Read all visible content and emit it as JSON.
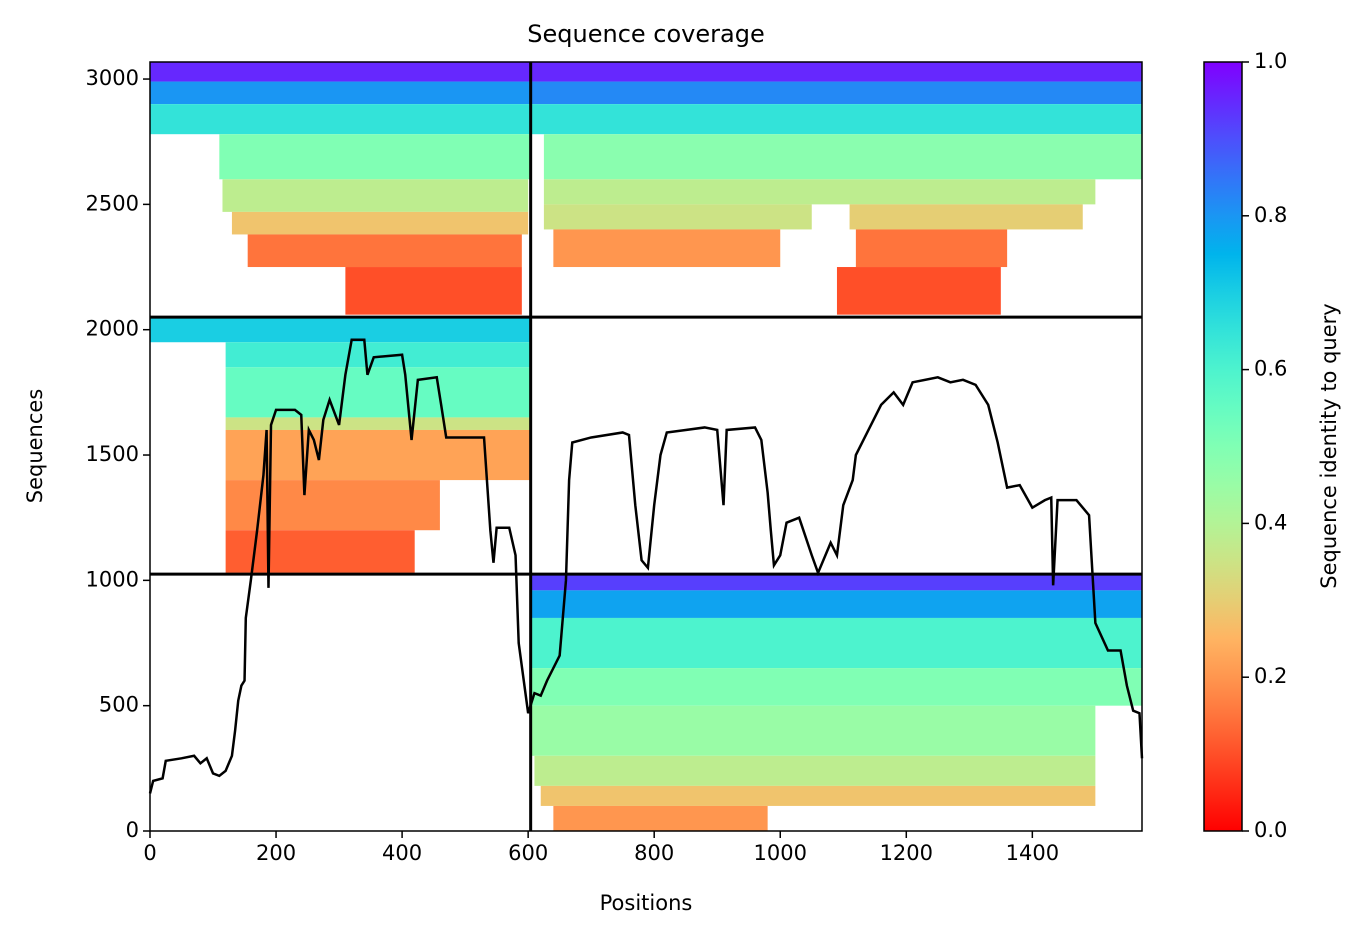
{
  "chart_data": {
    "type": "coverage",
    "title": "Sequence coverage",
    "xlabel": "Positions",
    "ylabel": "Sequences",
    "xlim": [
      0,
      1574
    ],
    "ylim": [
      0,
      3068
    ],
    "xticks": [
      0,
      200,
      400,
      600,
      800,
      1000,
      1200,
      1400
    ],
    "yticks": [
      0,
      500,
      1000,
      1500,
      2000,
      2500,
      3000
    ],
    "colorbar": {
      "label": "Sequence identity to query",
      "lim": [
        0,
        1
      ],
      "ticks": [
        {
          "value": 0,
          "label": "0.0"
        },
        {
          "value": 0.2,
          "label": "0.2"
        },
        {
          "value": 0.4,
          "label": "0.4"
        },
        {
          "value": 0.6,
          "label": "0.6"
        },
        {
          "value": 0.8,
          "label": "0.8"
        },
        {
          "value": 1,
          "label": "1.0"
        }
      ]
    },
    "dividers": {
      "x": [
        604
      ],
      "y": [
        1025,
        2050
      ],
      "color": "#000000"
    },
    "coverage": [
      {
        "x": [
          0,
          604
        ],
        "y": [
          2990,
          3068
        ],
        "identity": 0.95
      },
      {
        "x": [
          0,
          604
        ],
        "y": [
          2900,
          2990
        ],
        "identity": 0.8
      },
      {
        "x": [
          0,
          604
        ],
        "y": [
          2780,
          2900
        ],
        "identity": 0.65
      },
      {
        "x": [
          110,
          604
        ],
        "y": [
          2600,
          2780
        ],
        "identity": 0.5
      },
      {
        "x": [
          115,
          600
        ],
        "y": [
          2470,
          2600
        ],
        "identity": 0.38
      },
      {
        "x": [
          130,
          600
        ],
        "y": [
          2380,
          2470
        ],
        "identity": 0.28
      },
      {
        "x": [
          155,
          590
        ],
        "y": [
          2250,
          2380
        ],
        "identity": 0.15
      },
      {
        "x": [
          310,
          590
        ],
        "y": [
          2060,
          2250
        ],
        "identity": 0.1
      },
      {
        "x": [
          604,
          1574
        ],
        "y": [
          2990,
          3068
        ],
        "identity": 0.95
      },
      {
        "x": [
          604,
          1574
        ],
        "y": [
          2900,
          2990
        ],
        "identity": 0.82
      },
      {
        "x": [
          604,
          1574
        ],
        "y": [
          2780,
          2900
        ],
        "identity": 0.65
      },
      {
        "x": [
          625,
          1574
        ],
        "y": [
          2600,
          2780
        ],
        "identity": 0.48
      },
      {
        "x": [
          625,
          1500
        ],
        "y": [
          2500,
          2600
        ],
        "identity": 0.38
      },
      {
        "x": [
          625,
          1050
        ],
        "y": [
          2400,
          2500
        ],
        "identity": 0.35
      },
      {
        "x": [
          1110,
          1480
        ],
        "y": [
          2400,
          2500
        ],
        "identity": 0.3
      },
      {
        "x": [
          640,
          1000
        ],
        "y": [
          2250,
          2400
        ],
        "identity": 0.2
      },
      {
        "x": [
          1120,
          1360
        ],
        "y": [
          2250,
          2400
        ],
        "identity": 0.15
      },
      {
        "x": [
          1090,
          1350
        ],
        "y": [
          2060,
          2250
        ],
        "identity": 0.1
      },
      {
        "x": [
          0,
          604
        ],
        "y": [
          1950,
          2050
        ],
        "identity": 0.7
      },
      {
        "x": [
          120,
          604
        ],
        "y": [
          1850,
          1950
        ],
        "identity": 0.62
      },
      {
        "x": [
          120,
          604
        ],
        "y": [
          1650,
          1850
        ],
        "identity": 0.55
      },
      {
        "x": [
          120,
          604
        ],
        "y": [
          1600,
          1650
        ],
        "identity": 0.35
      },
      {
        "x": [
          120,
          604
        ],
        "y": [
          1400,
          1600
        ],
        "identity": 0.22
      },
      {
        "x": [
          120,
          460
        ],
        "y": [
          1200,
          1400
        ],
        "identity": 0.18
      },
      {
        "x": [
          120,
          420
        ],
        "y": [
          1030,
          1200
        ],
        "identity": 0.12
      },
      {
        "x": [
          604,
          1574
        ],
        "y": [
          960,
          1025
        ],
        "identity": 0.92
      },
      {
        "x": [
          604,
          1574
        ],
        "y": [
          850,
          960
        ],
        "identity": 0.78
      },
      {
        "x": [
          604,
          1574
        ],
        "y": [
          650,
          850
        ],
        "identity": 0.6
      },
      {
        "x": [
          604,
          1574
        ],
        "y": [
          500,
          650
        ],
        "identity": 0.5
      },
      {
        "x": [
          604,
          1500
        ],
        "y": [
          300,
          500
        ],
        "identity": 0.45
      },
      {
        "x": [
          610,
          1500
        ],
        "y": [
          180,
          300
        ],
        "identity": 0.38
      },
      {
        "x": [
          620,
          1500
        ],
        "y": [
          100,
          180
        ],
        "identity": 0.28
      },
      {
        "x": [
          640,
          980
        ],
        "y": [
          0,
          100
        ],
        "identity": 0.2
      }
    ],
    "coverage_line": {
      "color": "#000000",
      "x": [
        0,
        5,
        20,
        25,
        50,
        70,
        80,
        90,
        100,
        110,
        120,
        130,
        135,
        140,
        145,
        150,
        152,
        160,
        170,
        180,
        185,
        188,
        192,
        200,
        230,
        240,
        245,
        252,
        260,
        268,
        275,
        285,
        300,
        310,
        320,
        340,
        345,
        355,
        400,
        405,
        415,
        425,
        455,
        462,
        470,
        530,
        540,
        545,
        550,
        570,
        580,
        585,
        600,
        610,
        620,
        630,
        650,
        660,
        665,
        670,
        700,
        750,
        760,
        770,
        780,
        790,
        800,
        810,
        820,
        850,
        880,
        900,
        910,
        915,
        960,
        970,
        980,
        985,
        990,
        1000,
        1010,
        1030,
        1050,
        1060,
        1080,
        1090,
        1100,
        1115,
        1120,
        1140,
        1160,
        1180,
        1195,
        1210,
        1250,
        1270,
        1290,
        1310,
        1330,
        1345,
        1360,
        1380,
        1400,
        1420,
        1430,
        1433,
        1440,
        1470,
        1490,
        1500,
        1520,
        1540,
        1550,
        1560,
        1570,
        1574
      ],
      "y": [
        150,
        200,
        210,
        280,
        290,
        300,
        270,
        290,
        230,
        220,
        240,
        300,
        400,
        520,
        580,
        600,
        850,
        1000,
        1200,
        1420,
        1600,
        970,
        1620,
        1680,
        1680,
        1660,
        1340,
        1600,
        1560,
        1480,
        1640,
        1720,
        1620,
        1820,
        1960,
        1960,
        1820,
        1890,
        1900,
        1820,
        1560,
        1800,
        1810,
        1700,
        1570,
        1570,
        1200,
        1070,
        1210,
        1210,
        1100,
        750,
        470,
        550,
        540,
        600,
        700,
        1000,
        1400,
        1550,
        1570,
        1590,
        1580,
        1300,
        1080,
        1050,
        1300,
        1500,
        1590,
        1600,
        1610,
        1600,
        1300,
        1600,
        1610,
        1560,
        1350,
        1200,
        1060,
        1100,
        1230,
        1250,
        1100,
        1030,
        1150,
        1100,
        1300,
        1400,
        1500,
        1600,
        1700,
        1750,
        1700,
        1790,
        1810,
        1790,
        1800,
        1780,
        1700,
        1550,
        1370,
        1380,
        1290,
        1320,
        1330,
        980,
        1320,
        1320,
        1260,
        830,
        720,
        720,
        580,
        480,
        470,
        290
      ]
    }
  }
}
